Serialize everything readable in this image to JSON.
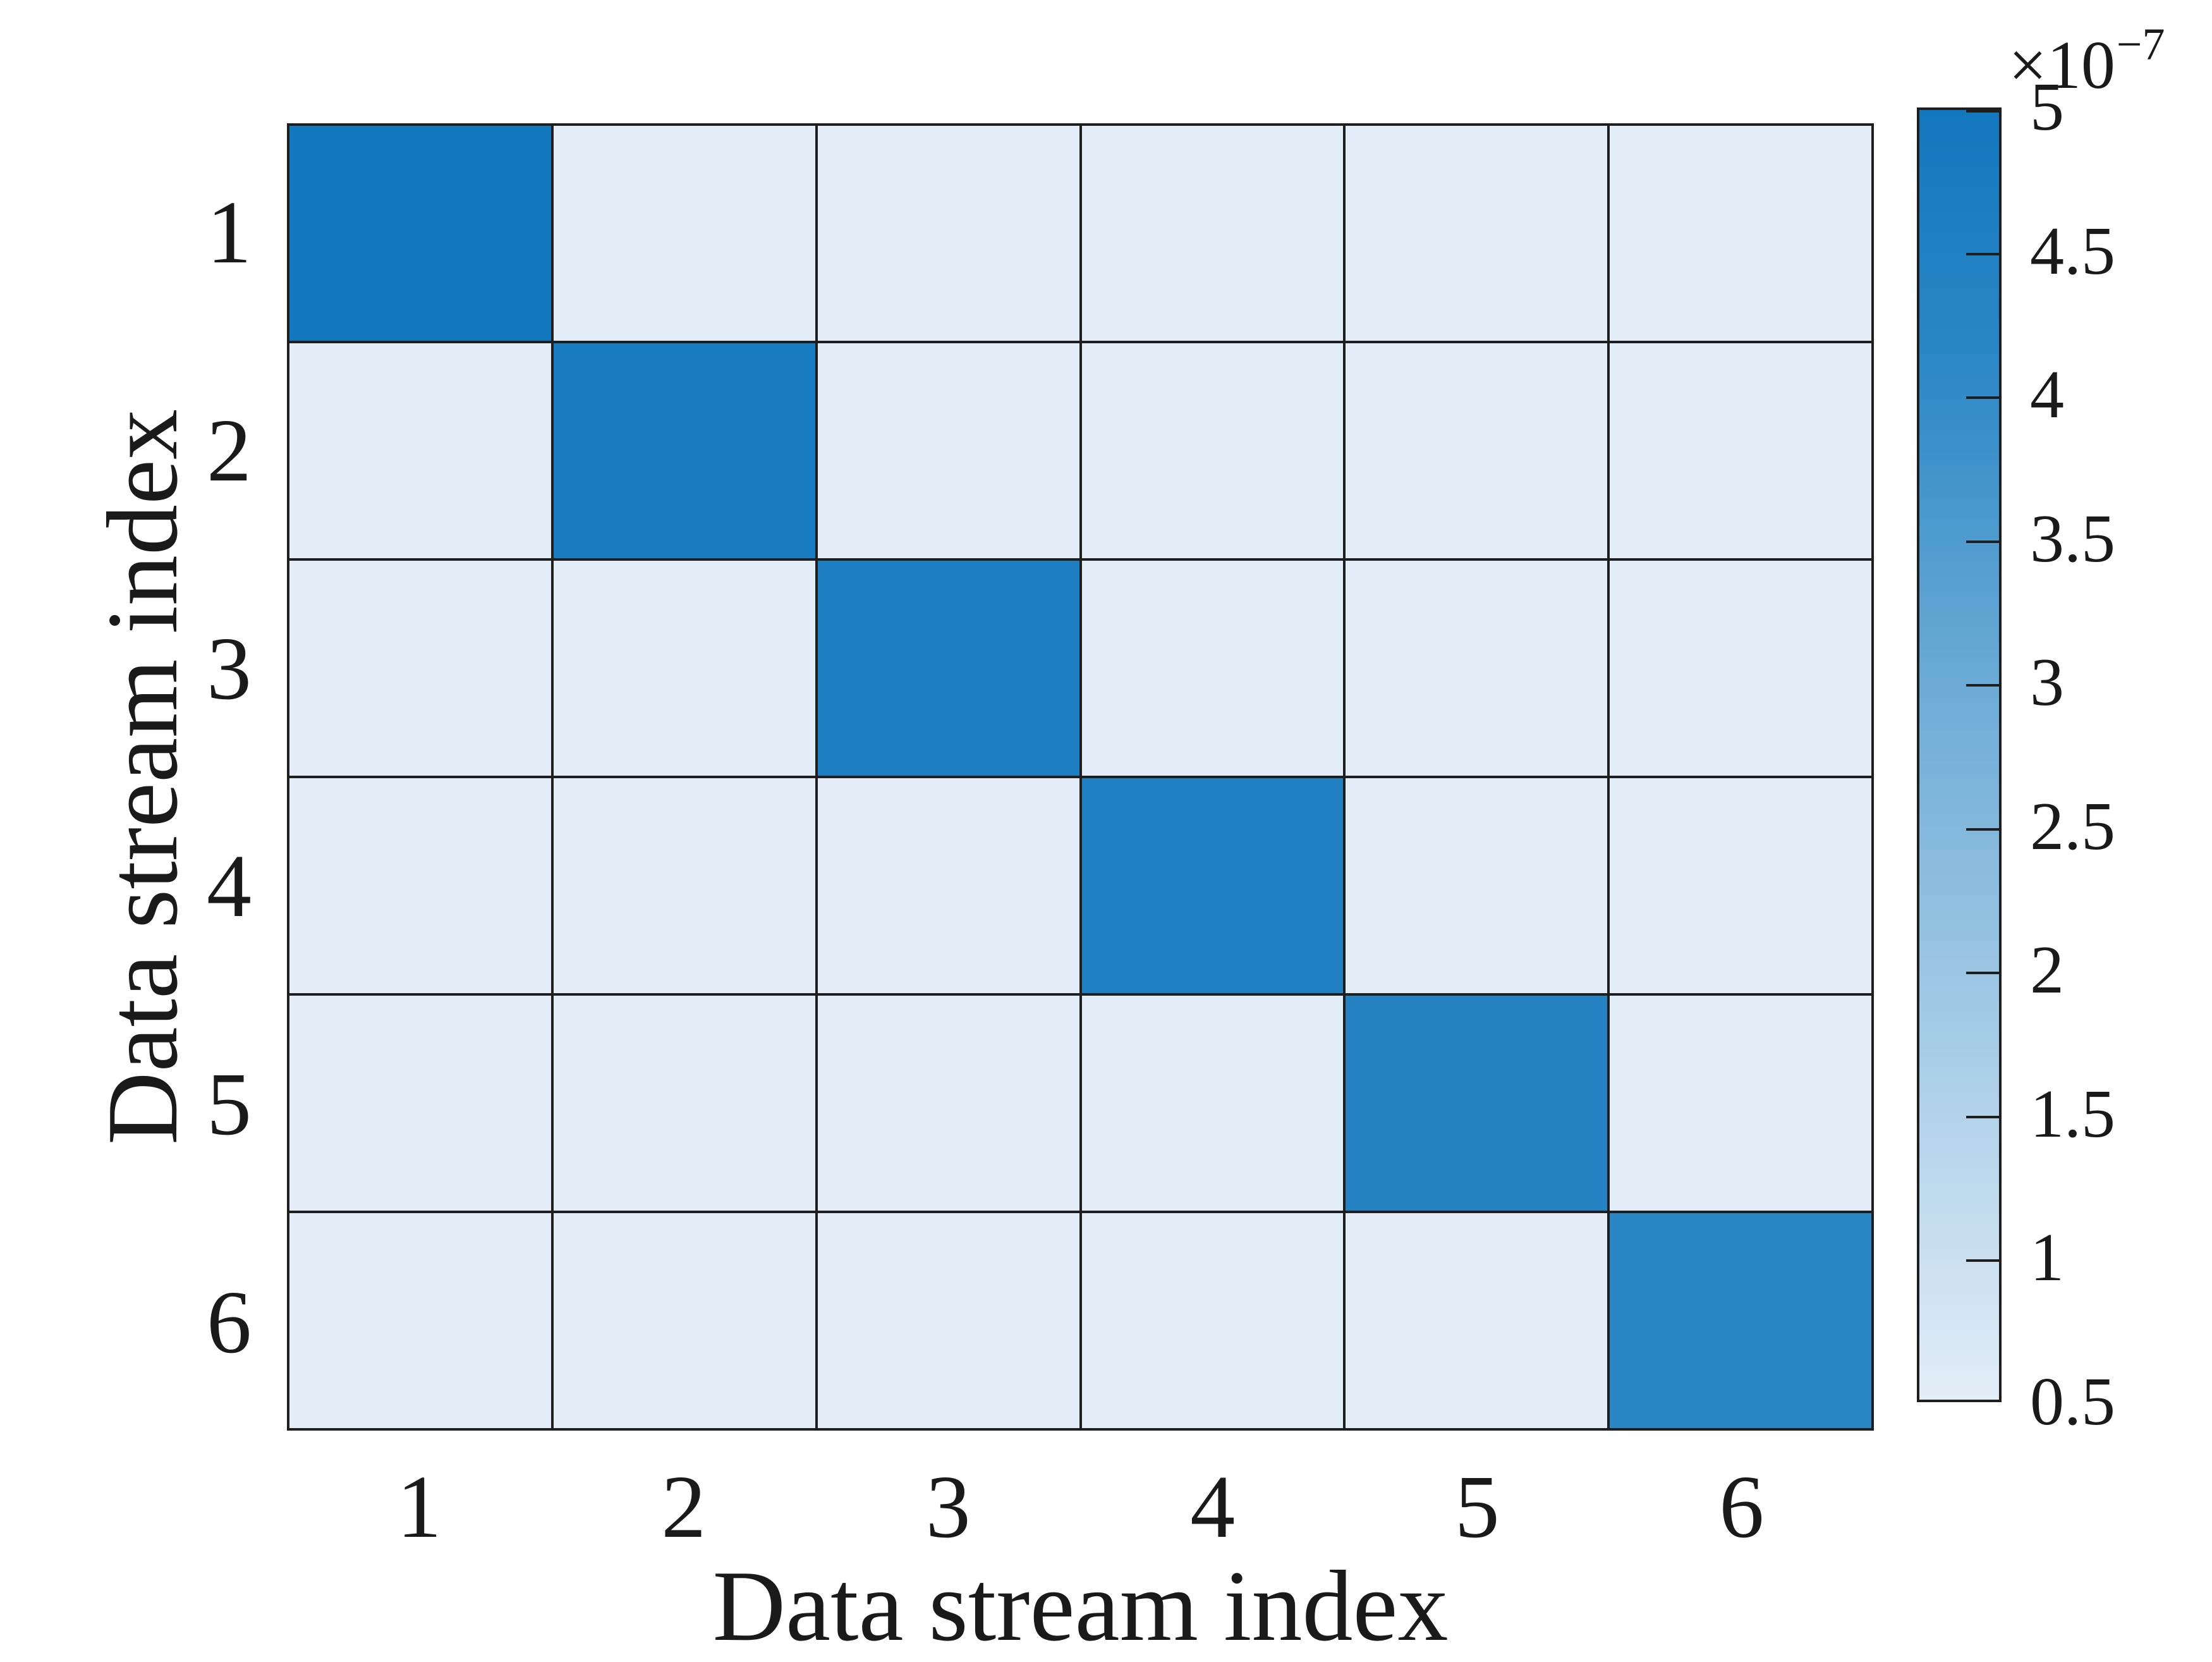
{
  "figure": {
    "background": "#ffffff",
    "text_color": "#1a1a1a",
    "grid_line_color": "#1e1e1e"
  },
  "chart_data": {
    "type": "heatmap",
    "title": "",
    "xlabel": "Data stream index",
    "ylabel": "Data stream index",
    "x_tick_labels": [
      "1",
      "2",
      "3",
      "4",
      "5",
      "6"
    ],
    "y_tick_labels": [
      "1",
      "2",
      "3",
      "4",
      "5",
      "6"
    ],
    "value_scale_label": {
      "prefix": "×10",
      "exponent": "−7"
    },
    "matrix_units": "1e-7",
    "matrix": [
      [
        5.0,
        0.5,
        0.5,
        0.5,
        0.5,
        0.5
      ],
      [
        0.5,
        4.75,
        0.5,
        0.5,
        0.5,
        0.5
      ],
      [
        0.5,
        0.5,
        4.65,
        0.5,
        0.5,
        0.5
      ],
      [
        0.5,
        0.5,
        0.5,
        4.55,
        0.5,
        0.5
      ],
      [
        0.5,
        0.5,
        0.5,
        0.5,
        4.4,
        0.5
      ],
      [
        0.5,
        0.5,
        0.5,
        0.5,
        0.5,
        4.2
      ]
    ],
    "colorbar": {
      "min": 0.5,
      "max": 5,
      "tick_values": [
        5,
        4.5,
        4,
        3.5,
        3,
        2.5,
        2,
        1.5,
        1,
        0.5
      ],
      "tick_labels": [
        "5",
        "4.5",
        "4",
        "3.5",
        "3",
        "2.5",
        "2",
        "1.5",
        "1",
        "0.5"
      ],
      "legend_position": "right",
      "colormap_stops": [
        {
          "value": 0.5,
          "color": "#E3EDF7"
        },
        {
          "value": 1.45,
          "color": "#B4D4EA"
        },
        {
          "value": 3.0,
          "color": "#6CABD6"
        },
        {
          "value": 4.1,
          "color": "#2C88C6"
        },
        {
          "value": 5.0,
          "color": "#1377BE"
        }
      ]
    }
  }
}
